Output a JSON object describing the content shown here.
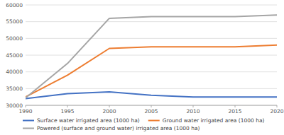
{
  "chart_data": {
    "type": "line",
    "x": [
      1990,
      1995,
      2000,
      2005,
      2010,
      2015,
      2020
    ],
    "xlim": [
      1990,
      2020
    ],
    "xticks": [
      1990,
      1995,
      2000,
      2005,
      2010,
      2015,
      2020
    ],
    "ylim": [
      30000,
      60000
    ],
    "yticks": [
      30000,
      35000,
      40000,
      45000,
      50000,
      55000,
      60000
    ],
    "grid": true,
    "legend": "bottom",
    "series": [
      {
        "name": "Surface water irrigated area (1000 ha)",
        "color": "#4472c4",
        "values": [
          32000,
          33500,
          34000,
          33000,
          32500,
          32500,
          32500
        ]
      },
      {
        "name": "Ground water irrigated area (1000 ha)",
        "color": "#ed7d31",
        "values": [
          32500,
          39000,
          47000,
          47500,
          47500,
          47500,
          48000
        ]
      },
      {
        "name": "Powered (surface and ground water) irrigated area (1000 ha)",
        "color": "#a5a5a5",
        "values": [
          32200,
          42500,
          56000,
          56500,
          56500,
          56500,
          57000
        ]
      }
    ]
  }
}
